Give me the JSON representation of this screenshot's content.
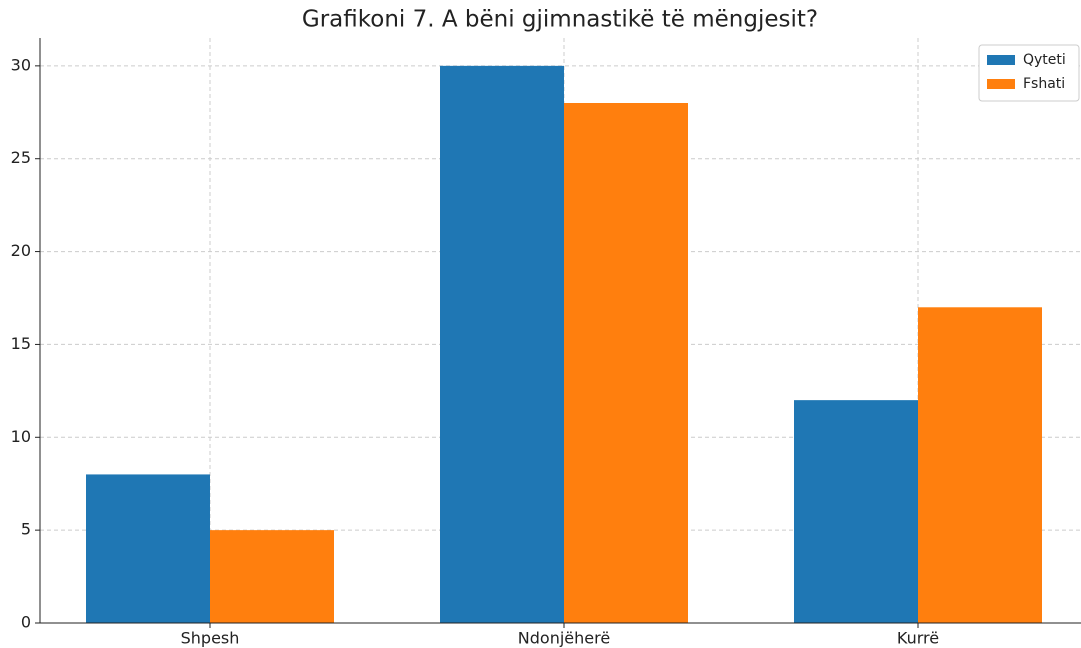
{
  "chart_data": {
    "type": "bar",
    "title": "Grafikoni 7. A bëni gjimnastikë të mëngjesit?",
    "categories": [
      "Shpesh",
      "Ndonjëherë",
      "Kurrë"
    ],
    "series": [
      {
        "name": "Qyteti",
        "color": "#1f77b4",
        "values": [
          8,
          30,
          12
        ]
      },
      {
        "name": "Fshati",
        "color": "#ff7f0e",
        "values": [
          5,
          28,
          17
        ]
      }
    ],
    "ylim": [
      0,
      31.5
    ],
    "yticks": [
      0,
      5,
      10,
      15,
      20,
      25,
      30
    ],
    "grid": true,
    "legend": "upper right"
  }
}
